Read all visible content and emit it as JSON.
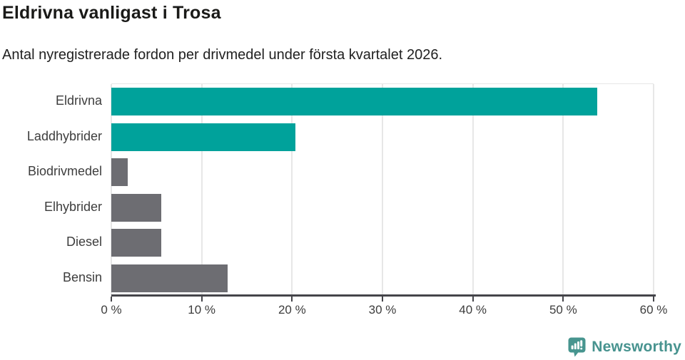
{
  "title": "Eldrivna vanligast i Trosa",
  "subtitle": "Antal nyregistrerade fordon per drivmedel under första kvartalet 2026.",
  "logo": {
    "text": "Newsworthy",
    "color": "#47938f",
    "icon_color": "#47958f"
  },
  "colors": {
    "highlight_bar": "#00a29b",
    "muted_bar": "#6d6d72",
    "grid_line": "#e7e7e7",
    "axis_line": "#45454a",
    "title_text": "#1a1a18",
    "body_text": "#3d3d3d"
  },
  "chart_data": {
    "type": "bar",
    "orientation": "horizontal",
    "title": "Eldrivna vanligast i Trosa",
    "subtitle": "Antal nyregistrerade fordon per drivmedel under första kvartalet 2026.",
    "categories": [
      "Eldrivna",
      "Laddhybrider",
      "Biodrivmedel",
      "Elhybrider",
      "Diesel",
      "Bensin"
    ],
    "values": [
      53.8,
      20.4,
      1.8,
      5.5,
      5.5,
      12.9
    ],
    "unit": "%",
    "bar_colors": [
      "#00a29b",
      "#00a29b",
      "#6d6d72",
      "#6d6d72",
      "#6d6d72",
      "#6d6d72"
    ],
    "xlim": [
      0,
      60
    ],
    "tick_values": [
      0,
      10,
      20,
      30,
      40,
      50,
      60
    ],
    "tick_labels": [
      "0 %",
      "10 %",
      "20 %",
      "30 %",
      "40 %",
      "50 %",
      "60 %"
    ],
    "grid": true,
    "legend": false,
    "xlabel": "",
    "ylabel": ""
  }
}
